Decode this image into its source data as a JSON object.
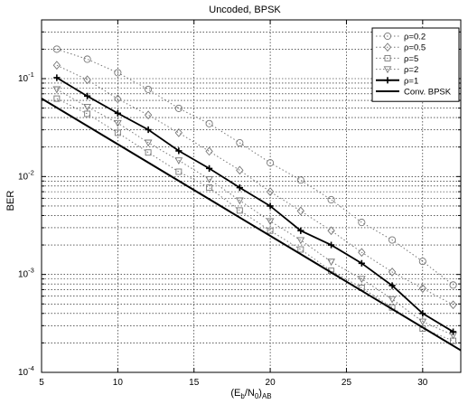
{
  "chart_data": {
    "type": "line",
    "title": "Uncoded, BPSK",
    "xlabel": "(E_b/N_0)_AB",
    "xlabel_parts": {
      "open": "(E",
      "sub1": "b",
      "mid": "/N",
      "sub2": "0",
      "close": ")",
      "sub3": "AB"
    },
    "ylabel": "BER",
    "xlim": [
      5,
      32.5
    ],
    "ylim_log10": [
      -4,
      -0.4
    ],
    "x_scale": "linear",
    "y_scale": "log",
    "grid": true,
    "legend_position": "top-right",
    "x_ticks": [
      {
        "value": 5,
        "label": "5"
      },
      {
        "value": 10,
        "label": "10"
      },
      {
        "value": 15,
        "label": "15"
      },
      {
        "value": 20,
        "label": "20"
      },
      {
        "value": 25,
        "label": "25"
      },
      {
        "value": 30,
        "label": "30"
      }
    ],
    "y_ticks": [
      {
        "exp": -1,
        "base": "10",
        "sup": "-1"
      },
      {
        "exp": -2,
        "base": "10",
        "sup": "-2"
      },
      {
        "exp": -3,
        "base": "10",
        "sup": "-3"
      },
      {
        "exp": -4,
        "base": "10",
        "sup": "-4"
      }
    ],
    "series": [
      {
        "name": "ρ=0.2",
        "marker": "circle",
        "line": "dotted",
        "color": "#777777",
        "x": [
          6,
          8,
          10,
          12,
          14,
          16,
          18,
          20,
          22,
          24,
          26,
          28,
          30,
          32
        ],
        "y": [
          0.2,
          0.158,
          0.115,
          0.0777,
          0.0497,
          0.0347,
          0.0221,
          0.0138,
          0.0092,
          0.0058,
          0.0034,
          0.00225,
          0.00136,
          0.00078
        ]
      },
      {
        "name": "ρ=0.5",
        "marker": "diamond",
        "line": "dotted",
        "color": "#777777",
        "x": [
          6,
          8,
          10,
          12,
          14,
          16,
          18,
          20,
          22,
          24,
          26,
          28,
          30,
          32
        ],
        "y": [
          0.137,
          0.0974,
          0.0621,
          0.0425,
          0.028,
          0.0181,
          0.0116,
          0.007,
          0.00445,
          0.0028,
          0.00168,
          0.00106,
          0.00072,
          0.00049
        ]
      },
      {
        "name": "ρ=5",
        "marker": "square",
        "line": "dotted",
        "color": "#777777",
        "x": [
          6,
          8,
          10,
          12,
          14,
          16,
          18,
          20,
          22,
          24,
          26,
          28,
          30,
          32
        ],
        "y": [
          0.0625,
          0.0437,
          0.028,
          0.0176,
          0.0112,
          0.0077,
          0.0045,
          0.0028,
          0.0018,
          0.00109,
          0.00073,
          0.00046,
          0.00028,
          0.00021
        ]
      },
      {
        "name": "ρ=2",
        "marker": "triangle-down",
        "line": "dotted",
        "color": "#777777",
        "x": [
          6,
          8,
          10,
          12,
          14,
          16,
          18,
          20,
          22,
          24,
          26,
          28,
          30,
          32
        ],
        "y": [
          0.0778,
          0.0515,
          0.0352,
          0.0222,
          0.0146,
          0.0094,
          0.0057,
          0.0035,
          0.00224,
          0.00135,
          0.0009,
          0.00056,
          0.00033,
          0.00024
        ]
      },
      {
        "name": "ρ=1",
        "marker": "plus",
        "line": "solid",
        "color": "#000000",
        "x": [
          6,
          8,
          10,
          12,
          14,
          16,
          18,
          20,
          22,
          24,
          26,
          28,
          30,
          32
        ],
        "y": [
          0.1022,
          0.0663,
          0.0443,
          0.0301,
          0.0183,
          0.0121,
          0.0077,
          0.005,
          0.0028,
          0.002,
          0.0013,
          0.00077,
          0.0004,
          0.00026
        ]
      },
      {
        "name": "Conv. BPSK",
        "marker": "none",
        "line": "solid",
        "color": "#000000",
        "x": [
          5,
          32.5
        ],
        "y": [
          0.0627,
          0.000168
        ]
      }
    ]
  }
}
